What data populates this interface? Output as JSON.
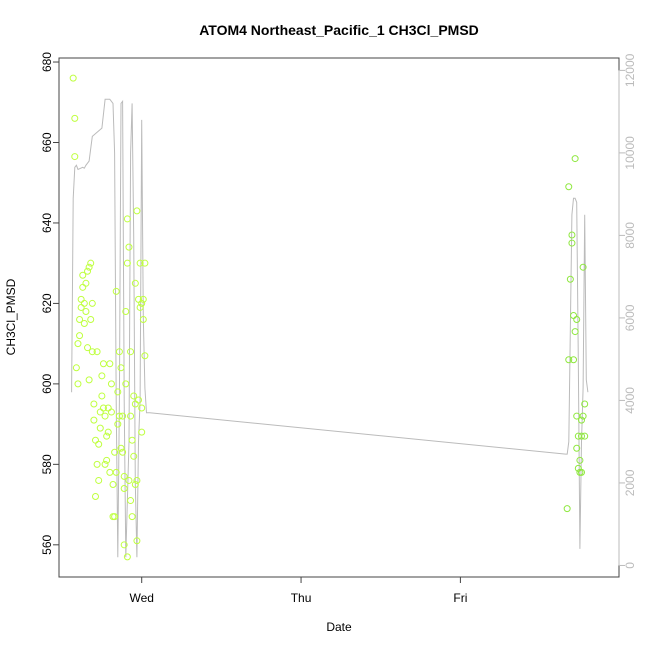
{
  "chart_data": {
    "type": "scatter",
    "title": "ATOM4 Northeast_Pacific_1 CH3Cl_PMSD",
    "xlabel": "Date",
    "ylabel": "CH3Cl_PMSD",
    "x_ticks": [
      {
        "label": "Wed",
        "day": 1.0
      },
      {
        "label": "Thu",
        "day": 2.0
      },
      {
        "label": "Fri",
        "day": 3.0
      }
    ],
    "xlim": [
      0.55,
      3.92
    ],
    "ylim": [
      552,
      681
    ],
    "y_ticks": [
      560,
      580,
      600,
      620,
      640,
      660,
      680
    ],
    "y2lim": [
      -280,
      12300
    ],
    "y2_ticks": [
      "0",
      "2000",
      "4000",
      "6000",
      "8000",
      "10000",
      "12000"
    ],
    "point_color": "#bfff3f",
    "point_color_late": "#8fe83f",
    "line_color": "#bbbbbb",
    "series_points": [
      [
        0.57,
        676
      ],
      [
        0.58,
        666
      ],
      [
        0.58,
        656.5
      ],
      [
        0.59,
        604
      ],
      [
        0.6,
        600
      ],
      [
        0.6,
        610
      ],
      [
        0.61,
        612
      ],
      [
        0.61,
        616
      ],
      [
        0.62,
        619
      ],
      [
        0.62,
        621
      ],
      [
        0.63,
        624
      ],
      [
        0.63,
        627
      ],
      [
        0.64,
        615
      ],
      [
        0.64,
        620
      ],
      [
        0.65,
        618
      ],
      [
        0.65,
        625
      ],
      [
        0.66,
        628
      ],
      [
        0.66,
        609
      ],
      [
        0.67,
        601
      ],
      [
        0.67,
        629
      ],
      [
        0.68,
        630
      ],
      [
        0.68,
        616
      ],
      [
        0.69,
        620
      ],
      [
        0.69,
        608
      ],
      [
        0.7,
        595
      ],
      [
        0.7,
        591
      ],
      [
        0.71,
        586
      ],
      [
        0.71,
        572
      ],
      [
        0.72,
        580
      ],
      [
        0.72,
        608
      ],
      [
        0.73,
        576
      ],
      [
        0.73,
        585
      ],
      [
        0.74,
        593
      ],
      [
        0.74,
        589
      ],
      [
        0.75,
        602
      ],
      [
        0.75,
        597
      ],
      [
        0.76,
        594
      ],
      [
        0.76,
        605
      ],
      [
        0.77,
        592
      ],
      [
        0.77,
        580
      ],
      [
        0.78,
        587
      ],
      [
        0.78,
        581
      ],
      [
        0.79,
        594
      ],
      [
        0.79,
        588
      ],
      [
        0.8,
        578
      ],
      [
        0.8,
        605
      ],
      [
        0.81,
        593
      ],
      [
        0.81,
        600
      ],
      [
        0.82,
        567
      ],
      [
        0.82,
        575
      ],
      [
        0.83,
        567
      ],
      [
        0.83,
        583
      ],
      [
        0.84,
        623
      ],
      [
        0.84,
        578
      ],
      [
        0.85,
        598
      ],
      [
        0.85,
        590
      ],
      [
        0.86,
        608
      ],
      [
        0.86,
        592
      ],
      [
        0.87,
        604
      ],
      [
        0.87,
        584
      ],
      [
        0.88,
        583
      ],
      [
        0.88,
        592
      ],
      [
        0.89,
        574
      ],
      [
        0.89,
        577
      ],
      [
        0.9,
        618
      ],
      [
        0.9,
        600
      ],
      [
        0.91,
        630
      ],
      [
        0.91,
        641
      ],
      [
        0.92,
        634
      ],
      [
        0.92,
        576
      ],
      [
        0.93,
        592
      ],
      [
        0.93,
        571
      ],
      [
        0.94,
        586
      ],
      [
        0.94,
        567
      ],
      [
        0.95,
        597
      ],
      [
        0.95,
        582
      ],
      [
        0.96,
        575
      ],
      [
        0.96,
        595
      ],
      [
        0.97,
        576
      ],
      [
        0.97,
        643
      ],
      [
        0.98,
        621
      ],
      [
        0.98,
        596
      ],
      [
        0.99,
        630
      ],
      [
        0.99,
        619
      ],
      [
        1.0,
        588
      ],
      [
        1.0,
        620
      ],
      [
        1.01,
        616
      ],
      [
        1.01,
        621
      ],
      [
        1.02,
        630
      ],
      [
        1.02,
        607
      ],
      [
        0.97,
        561
      ],
      [
        0.91,
        557
      ],
      [
        0.89,
        560
      ],
      [
        1.0,
        594
      ],
      [
        0.96,
        625
      ],
      [
        0.93,
        608
      ]
    ],
    "series_points_late": [
      [
        3.67,
        569
      ],
      [
        3.68,
        606
      ],
      [
        3.68,
        649
      ],
      [
        3.69,
        626
      ],
      [
        3.7,
        637
      ],
      [
        3.7,
        635
      ],
      [
        3.71,
        606
      ],
      [
        3.71,
        617
      ],
      [
        3.72,
        613
      ],
      [
        3.72,
        656
      ],
      [
        3.73,
        592
      ],
      [
        3.73,
        584
      ],
      [
        3.74,
        579
      ],
      [
        3.74,
        587
      ],
      [
        3.75,
        578
      ],
      [
        3.75,
        581
      ],
      [
        3.76,
        591
      ],
      [
        3.76,
        578
      ],
      [
        3.77,
        629
      ],
      [
        3.77,
        592
      ],
      [
        3.78,
        595
      ],
      [
        3.78,
        587
      ],
      [
        3.73,
        616
      ],
      [
        3.76,
        587
      ]
    ],
    "series_line": [
      [
        0.56,
        4200
      ],
      [
        0.57,
        8900
      ],
      [
        0.58,
        9650
      ],
      [
        0.59,
        9700
      ],
      [
        0.6,
        9600
      ],
      [
        0.63,
        9650
      ],
      [
        0.64,
        9630
      ],
      [
        0.65,
        9700
      ],
      [
        0.67,
        9800
      ],
      [
        0.69,
        10400
      ],
      [
        0.72,
        10500
      ],
      [
        0.75,
        10600
      ],
      [
        0.77,
        11300
      ],
      [
        0.8,
        11300
      ],
      [
        0.81,
        11250
      ],
      [
        0.82,
        11200
      ],
      [
        0.83,
        10000
      ],
      [
        0.84,
        4000
      ],
      [
        0.85,
        200
      ],
      [
        0.86,
        4000
      ],
      [
        0.87,
        11200
      ],
      [
        0.88,
        11250
      ],
      [
        0.89,
        4000
      ],
      [
        0.9,
        200
      ],
      [
        0.92,
        3000
      ],
      [
        0.93,
        10000
      ],
      [
        0.94,
        11200
      ],
      [
        0.95,
        8000
      ],
      [
        0.96,
        2000
      ],
      [
        0.97,
        200
      ],
      [
        0.98,
        3000
      ],
      [
        0.99,
        4000
      ],
      [
        1.0,
        10800
      ],
      [
        1.01,
        6000
      ],
      [
        1.02,
        4300
      ],
      [
        1.03,
        3700
      ],
      [
        1.05,
        3700
      ],
      [
        3.66,
        2700
      ],
      [
        3.67,
        2700
      ],
      [
        3.68,
        3000
      ],
      [
        3.7,
        8500
      ],
      [
        3.71,
        8900
      ],
      [
        3.72,
        8900
      ],
      [
        3.73,
        8800
      ],
      [
        3.74,
        5000
      ],
      [
        3.75,
        400
      ],
      [
        3.76,
        3000
      ],
      [
        3.77,
        4300
      ],
      [
        3.78,
        8500
      ],
      [
        3.79,
        4500
      ],
      [
        3.8,
        4200
      ]
    ]
  }
}
